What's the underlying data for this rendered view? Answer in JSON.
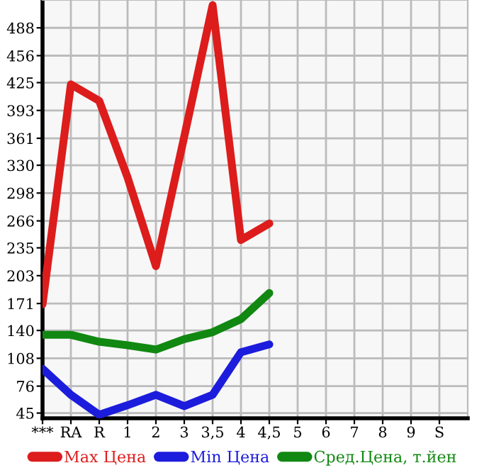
{
  "chart_data": {
    "type": "line",
    "categories": [
      "***",
      "RA",
      "R",
      "1",
      "2",
      "3",
      "3,5",
      "4",
      "4,5",
      "5",
      "6",
      "7",
      "8",
      "9",
      "S"
    ],
    "series": [
      {
        "name": "Max Цена",
        "color": "#dd1c1c",
        "values": [
          170,
          423,
          404,
          316,
          214,
          363,
          514,
          244,
          263,
          null,
          null,
          null,
          null,
          null,
          null
        ]
      },
      {
        "name": "Min Цена",
        "color": "#1c1cdd",
        "values": [
          96,
          66,
          43,
          54,
          66,
          53,
          66,
          115,
          124,
          null,
          null,
          null,
          null,
          null,
          null
        ]
      },
      {
        "name": "Сред.Цена, т.йен",
        "color": "#118811",
        "values": [
          135,
          135,
          127,
          123,
          118,
          130,
          138,
          153,
          183,
          null,
          null,
          null,
          null,
          null,
          null
        ]
      }
    ],
    "ylim": [
      39,
      520
    ],
    "yticks": [
      45,
      76,
      108,
      140,
      171,
      203,
      235,
      266,
      298,
      330,
      361,
      393,
      425,
      456,
      488
    ],
    "grid": true,
    "legend": "bottom",
    "marker": "none",
    "line_style": "solid"
  }
}
